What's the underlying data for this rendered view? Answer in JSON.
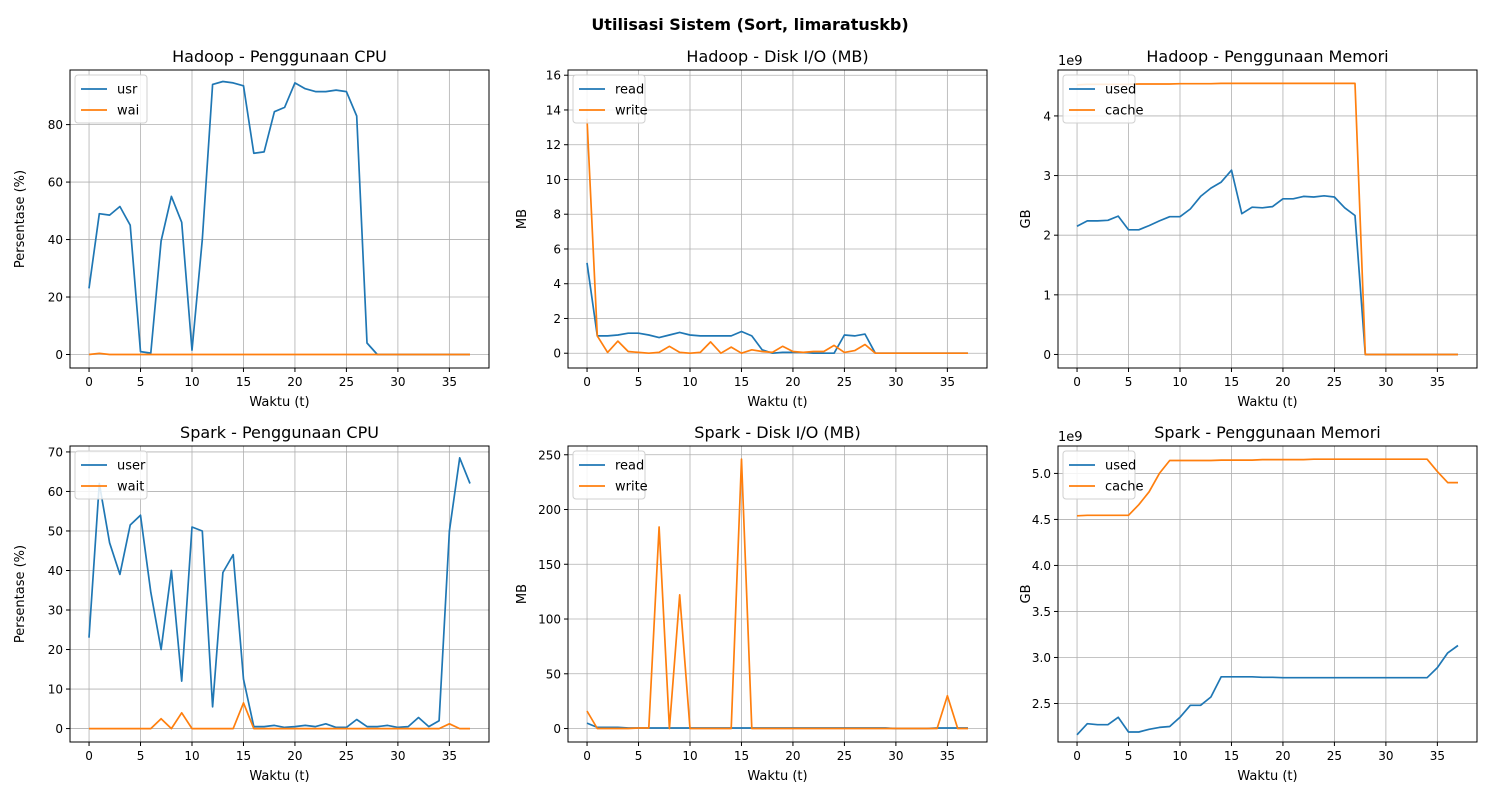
{
  "figure_title": "Utilisasi Sistem (Sort, limaratuskb)",
  "chart_data": [
    {
      "id": "hadoop-cpu",
      "type": "line",
      "title": "Hadoop - Penggunaan CPU",
      "xlabel": "Waktu (t)",
      "ylabel": "Persentase (%)",
      "xlim": [
        -1.85,
        38.85
      ],
      "ylim": [
        -4.7,
        99
      ],
      "xticks": [
        0,
        5,
        10,
        15,
        20,
        25,
        30,
        35
      ],
      "yticks": [
        0,
        20,
        40,
        60,
        80
      ],
      "ytick_labels": [
        "0",
        "20",
        "40",
        "60",
        "80"
      ],
      "offset_text": "",
      "grid": true,
      "legend_position": "upper-left",
      "x": [
        0,
        1,
        2,
        3,
        4,
        5,
        6,
        7,
        8,
        9,
        10,
        11,
        12,
        13,
        14,
        15,
        16,
        17,
        18,
        19,
        20,
        21,
        22,
        23,
        24,
        25,
        26,
        27,
        28,
        29,
        30,
        31,
        32,
        33,
        34,
        35,
        36,
        37
      ],
      "series": [
        {
          "name": "usr",
          "color": "#1f77b4",
          "values": [
            23,
            49,
            48.5,
            51.5,
            45,
            1,
            0.5,
            39.5,
            55,
            46,
            1.5,
            40,
            94,
            95,
            94.5,
            93.5,
            70,
            70.5,
            84.5,
            86,
            94.5,
            92.5,
            91.5,
            91.5,
            92,
            91.5,
            83,
            4,
            0,
            0,
            0,
            0,
            0,
            0,
            0,
            0,
            0,
            0
          ]
        },
        {
          "name": "wai",
          "color": "#ff7f0e",
          "values": [
            0,
            0.4,
            0,
            0,
            0,
            0,
            0,
            0,
            0,
            0,
            0,
            0,
            0,
            0,
            0,
            0,
            0,
            0,
            0,
            0,
            0,
            0,
            0,
            0,
            0,
            0,
            0,
            0,
            0,
            0,
            0,
            0,
            0,
            0,
            0,
            0,
            0,
            0
          ]
        }
      ]
    },
    {
      "id": "hadoop-disk",
      "type": "line",
      "title": "Hadoop - Disk I/O (MB)",
      "xlabel": "Waktu (t)",
      "ylabel": "MB",
      "xlim": [
        -1.85,
        38.85
      ],
      "ylim": [
        -0.85,
        16.3
      ],
      "xticks": [
        0,
        5,
        10,
        15,
        20,
        25,
        30,
        35
      ],
      "yticks": [
        0,
        2,
        4,
        6,
        8,
        10,
        12,
        14,
        16
      ],
      "ytick_labels": [
        "0",
        "2",
        "4",
        "6",
        "8",
        "10",
        "12",
        "14",
        "16"
      ],
      "offset_text": "",
      "grid": true,
      "legend_position": "upper-left",
      "x": [
        0,
        1,
        2,
        3,
        4,
        5,
        6,
        7,
        8,
        9,
        10,
        11,
        12,
        13,
        14,
        15,
        16,
        17,
        18,
        19,
        20,
        21,
        22,
        23,
        24,
        25,
        26,
        27,
        28,
        29,
        30,
        31,
        32,
        33,
        34,
        35,
        36,
        37
      ],
      "series": [
        {
          "name": "read",
          "color": "#1f77b4",
          "values": [
            5.2,
            1.0,
            1.0,
            1.05,
            1.15,
            1.15,
            1.05,
            0.9,
            1.05,
            1.2,
            1.05,
            1.0,
            1.0,
            1.0,
            1.0,
            1.25,
            1.0,
            0.2,
            0.0,
            0.05,
            0.05,
            0.05,
            0.0,
            0.0,
            0.0,
            1.05,
            1.0,
            1.1,
            0.0,
            0.0,
            0.0,
            0.0,
            0.0,
            0.0,
            0.0,
            0.0,
            0.0,
            0.0
          ]
        },
        {
          "name": "write",
          "color": "#ff7f0e",
          "values": [
            13.5,
            1.0,
            0.05,
            0.7,
            0.1,
            0.05,
            0.0,
            0.05,
            0.4,
            0.05,
            0.0,
            0.05,
            0.65,
            0.0,
            0.35,
            0.0,
            0.2,
            0.1,
            0.05,
            0.4,
            0.1,
            0.05,
            0.1,
            0.1,
            0.45,
            0.05,
            0.15,
            0.5,
            0.0,
            0.0,
            0.0,
            0.0,
            0.0,
            0.0,
            0.0,
            0.0,
            0.0,
            0.0
          ]
        }
      ]
    },
    {
      "id": "hadoop-mem",
      "type": "line",
      "title": "Hadoop - Penggunaan Memori",
      "xlabel": "Waktu (t)",
      "ylabel": "GB",
      "xlim": [
        -1.85,
        38.85
      ],
      "ylim": [
        -227000000.0,
        4770000000.0
      ],
      "xticks": [
        0,
        5,
        10,
        15,
        20,
        25,
        30,
        35
      ],
      "yticks": [
        0,
        1000000000.0,
        2000000000.0,
        3000000000.0,
        4000000000.0
      ],
      "ytick_labels": [
        "0",
        "1",
        "2",
        "3",
        "4"
      ],
      "offset_text": "1e9",
      "grid": true,
      "legend_position": "upper-left",
      "x": [
        0,
        1,
        2,
        3,
        4,
        5,
        6,
        7,
        8,
        9,
        10,
        11,
        12,
        13,
        14,
        15,
        16,
        17,
        18,
        19,
        20,
        21,
        22,
        23,
        24,
        25,
        26,
        27,
        28,
        29,
        30,
        31,
        32,
        33,
        34,
        35,
        36,
        37
      ],
      "series": [
        {
          "name": "used",
          "color": "#1f77b4",
          "values": [
            2150000000.0,
            2240000000.0,
            2240000000.0,
            2250000000.0,
            2320000000.0,
            2090000000.0,
            2090000000.0,
            2160000000.0,
            2240000000.0,
            2310000000.0,
            2310000000.0,
            2440000000.0,
            2650000000.0,
            2790000000.0,
            2890000000.0,
            3090000000.0,
            2360000000.0,
            2470000000.0,
            2460000000.0,
            2480000000.0,
            2610000000.0,
            2610000000.0,
            2650000000.0,
            2640000000.0,
            2660000000.0,
            2640000000.0,
            2460000000.0,
            2330000000.0,
            0,
            0,
            0,
            0,
            0,
            0,
            0,
            0,
            0,
            0
          ]
        },
        {
          "name": "cache",
          "color": "#ff7f0e",
          "values": [
            4520000000.0,
            4530000000.0,
            4530000000.0,
            4530000000.0,
            4530000000.0,
            4530000000.0,
            4535000000.0,
            4535000000.0,
            4535000000.0,
            4535000000.0,
            4540000000.0,
            4540000000.0,
            4540000000.0,
            4540000000.0,
            4545000000.0,
            4545000000.0,
            4545000000.0,
            4545000000.0,
            4545000000.0,
            4545000000.0,
            4545000000.0,
            4545000000.0,
            4545000000.0,
            4545000000.0,
            4545000000.0,
            4545000000.0,
            4545000000.0,
            4545000000.0,
            0,
            0,
            0,
            0,
            0,
            0,
            0,
            0,
            0,
            0
          ]
        }
      ]
    },
    {
      "id": "spark-cpu",
      "type": "line",
      "title": "Spark - Penggunaan CPU",
      "xlabel": "Waktu (t)",
      "ylabel": "Persentase (%)",
      "xlim": [
        -1.85,
        38.85
      ],
      "ylim": [
        -3.4,
        71.5
      ],
      "xticks": [
        0,
        5,
        10,
        15,
        20,
        25,
        30,
        35
      ],
      "yticks": [
        0,
        10,
        20,
        30,
        40,
        50,
        60,
        70
      ],
      "ytick_labels": [
        "0",
        "10",
        "20",
        "30",
        "40",
        "50",
        "60",
        "70"
      ],
      "offset_text": "",
      "grid": true,
      "legend_position": "upper-left",
      "x": [
        0,
        1,
        2,
        3,
        4,
        5,
        6,
        7,
        8,
        9,
        10,
        11,
        12,
        13,
        14,
        15,
        16,
        17,
        18,
        19,
        20,
        21,
        22,
        23,
        24,
        25,
        26,
        27,
        28,
        29,
        30,
        31,
        32,
        33,
        34,
        35,
        36,
        37
      ],
      "series": [
        {
          "name": "user",
          "color": "#1f77b4",
          "values": [
            23,
            62,
            47,
            39,
            51.5,
            54,
            34.5,
            20,
            40,
            12,
            51,
            50,
            5.5,
            39.5,
            44,
            12.5,
            0.5,
            0.5,
            0.8,
            0.3,
            0.5,
            0.8,
            0.5,
            1.2,
            0.3,
            0.3,
            2.3,
            0.5,
            0.5,
            0.8,
            0.3,
            0.5,
            2.8,
            0.5,
            2.0,
            50,
            68.5,
            62
          ]
        },
        {
          "name": "wait",
          "color": "#ff7f0e",
          "values": [
            0,
            0,
            0,
            0,
            0,
            0,
            0,
            2.5,
            0,
            4.0,
            0,
            0,
            0,
            0,
            0,
            6.5,
            0,
            0,
            0,
            0,
            0,
            0,
            0,
            0,
            0,
            0,
            0,
            0,
            0,
            0,
            0,
            0,
            0,
            0,
            0,
            1.2,
            0,
            0
          ]
        }
      ]
    },
    {
      "id": "spark-disk",
      "type": "line",
      "title": "Spark - Disk I/O (MB)",
      "xlabel": "Waktu (t)",
      "ylabel": "MB",
      "xlim": [
        -1.85,
        38.85
      ],
      "ylim": [
        -12.3,
        258
      ],
      "xticks": [
        0,
        5,
        10,
        15,
        20,
        25,
        30,
        35
      ],
      "yticks": [
        0,
        50,
        100,
        150,
        200,
        250
      ],
      "ytick_labels": [
        "0",
        "50",
        "100",
        "150",
        "200",
        "250"
      ],
      "offset_text": "",
      "grid": true,
      "legend_position": "upper-left",
      "x": [
        0,
        1,
        2,
        3,
        4,
        5,
        6,
        7,
        8,
        9,
        10,
        11,
        12,
        13,
        14,
        15,
        16,
        17,
        18,
        19,
        20,
        21,
        22,
        23,
        24,
        25,
        26,
        27,
        28,
        29,
        30,
        31,
        32,
        33,
        34,
        35,
        36,
        37
      ],
      "series": [
        {
          "name": "read",
          "color": "#1f77b4",
          "values": [
            5,
            1,
            1,
            1,
            0.5,
            0.5,
            0.5,
            0.5,
            0.5,
            0.5,
            0.5,
            0.5,
            0.5,
            0.5,
            0.5,
            0.5,
            0.5,
            0.5,
            0.5,
            0.5,
            0.5,
            0.5,
            0.5,
            0.5,
            0.5,
            0.5,
            0.5,
            0.5,
            0.5,
            0.5,
            0,
            0,
            0,
            0,
            0.5,
            0.5,
            0.5,
            0.5
          ]
        },
        {
          "name": "write",
          "color": "#ff7f0e",
          "values": [
            16,
            0,
            0,
            0,
            0,
            0.5,
            0.5,
            184,
            0,
            122,
            0,
            0,
            0,
            0,
            0,
            246,
            0,
            0,
            0,
            0,
            0,
            0,
            0,
            0,
            0,
            0,
            0,
            0,
            0,
            0,
            0,
            0,
            0,
            0,
            0,
            30,
            0,
            0
          ]
        }
      ]
    },
    {
      "id": "spark-mem",
      "type": "line",
      "title": "Spark - Penggunaan Memori",
      "xlabel": "Waktu (t)",
      "ylabel": "GB",
      "xlim": [
        -1.85,
        38.85
      ],
      "ylim": [
        2081500000.0,
        5298000000.0
      ],
      "xticks": [
        0,
        5,
        10,
        15,
        20,
        25,
        30,
        35
      ],
      "yticks": [
        2500000000.0,
        3000000000.0,
        3500000000.0,
        4000000000.0,
        4500000000.0,
        5000000000.0
      ],
      "ytick_labels": [
        "2.5",
        "3.0",
        "3.5",
        "4.0",
        "4.5",
        "5.0"
      ],
      "offset_text": "1e9",
      "grid": true,
      "legend_position": "upper-left",
      "x": [
        0,
        1,
        2,
        3,
        4,
        5,
        6,
        7,
        8,
        9,
        10,
        11,
        12,
        13,
        14,
        15,
        16,
        17,
        18,
        19,
        20,
        21,
        22,
        23,
        24,
        25,
        26,
        27,
        28,
        29,
        30,
        31,
        32,
        33,
        34,
        35,
        36,
        37
      ],
      "series": [
        {
          "name": "used",
          "color": "#1f77b4",
          "values": [
            2160000000.0,
            2280000000.0,
            2270000000.0,
            2270000000.0,
            2350000000.0,
            2190000000.0,
            2190000000.0,
            2220000000.0,
            2240000000.0,
            2250000000.0,
            2350000000.0,
            2480000000.0,
            2480000000.0,
            2570000000.0,
            2790000000.0,
            2790000000.0,
            2790000000.0,
            2790000000.0,
            2785000000.0,
            2785000000.0,
            2780000000.0,
            2780000000.0,
            2780000000.0,
            2780000000.0,
            2780000000.0,
            2780000000.0,
            2780000000.0,
            2780000000.0,
            2780000000.0,
            2780000000.0,
            2780000000.0,
            2780000000.0,
            2780000000.0,
            2780000000.0,
            2780000000.0,
            2890000000.0,
            3050000000.0,
            3130000000.0
          ]
        },
        {
          "name": "cache",
          "color": "#ff7f0e",
          "values": [
            4540000000.0,
            4545000000.0,
            4545000000.0,
            4545000000.0,
            4545000000.0,
            4545000000.0,
            4660000000.0,
            4800000000.0,
            5000000000.0,
            5140000000.0,
            5140000000.0,
            5140000000.0,
            5140000000.0,
            5140000000.0,
            5145000000.0,
            5145000000.0,
            5145000000.0,
            5145000000.0,
            5150000000.0,
            5150000000.0,
            5150000000.0,
            5150000000.0,
            5150000000.0,
            5155000000.0,
            5155000000.0,
            5155000000.0,
            5155000000.0,
            5155000000.0,
            5155000000.0,
            5155000000.0,
            5155000000.0,
            5155000000.0,
            5155000000.0,
            5155000000.0,
            5155000000.0,
            5020000000.0,
            4900000000.0,
            4900000000.0
          ]
        }
      ]
    }
  ]
}
